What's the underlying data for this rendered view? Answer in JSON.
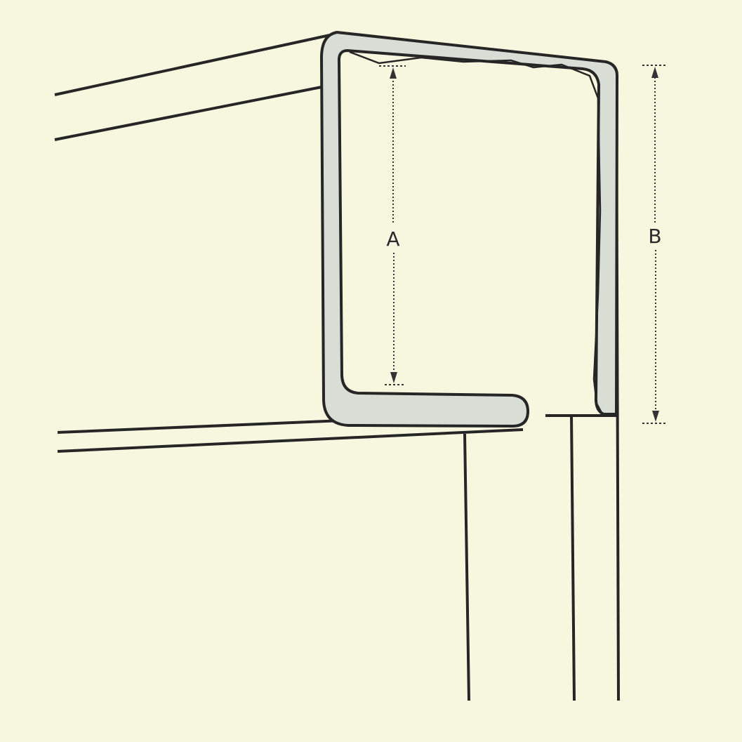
{
  "diagram": {
    "label_a": "A",
    "label_b": "B"
  },
  "colors": {
    "background": "#f7f7df",
    "line": "#262626",
    "profile_fill": "#d8ddd6",
    "dimension": "#333333"
  }
}
